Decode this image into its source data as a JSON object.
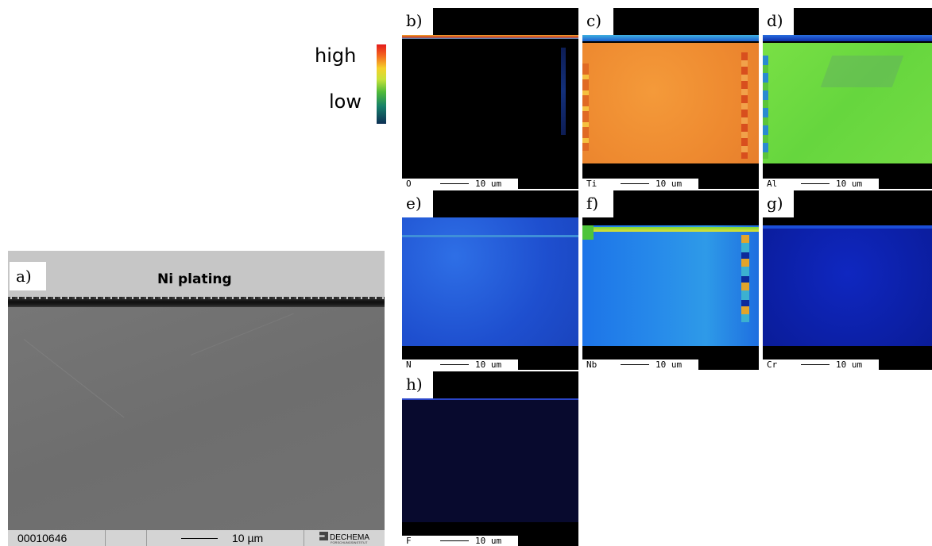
{
  "legend": {
    "high": "high",
    "low": "low",
    "colors": [
      "#e41b1b",
      "#f4661e",
      "#f5d12a",
      "#c7e23a",
      "#4fba3a",
      "#16806a",
      "#0d2f55"
    ]
  },
  "sem": {
    "label": "a)",
    "title": "Ni plating",
    "id": "00010646",
    "scale": "10 µm",
    "logo": "DECHEMA",
    "logo_sub": "FORSCHUNGSINSTITUT"
  },
  "maps": [
    {
      "label": "b)",
      "element": "O",
      "scale": "10 um"
    },
    {
      "label": "c)",
      "element": "Ti",
      "scale": "10 um"
    },
    {
      "label": "d)",
      "element": "Al",
      "scale": "10 um"
    },
    {
      "label": "e)",
      "element": "N",
      "scale": "10 um"
    },
    {
      "label": "f)",
      "element": "Nb",
      "scale": "10 um"
    },
    {
      "label": "g)",
      "element": "Cr",
      "scale": "10 um"
    },
    {
      "label": "h)",
      "element": "F",
      "scale": "10 um"
    }
  ]
}
